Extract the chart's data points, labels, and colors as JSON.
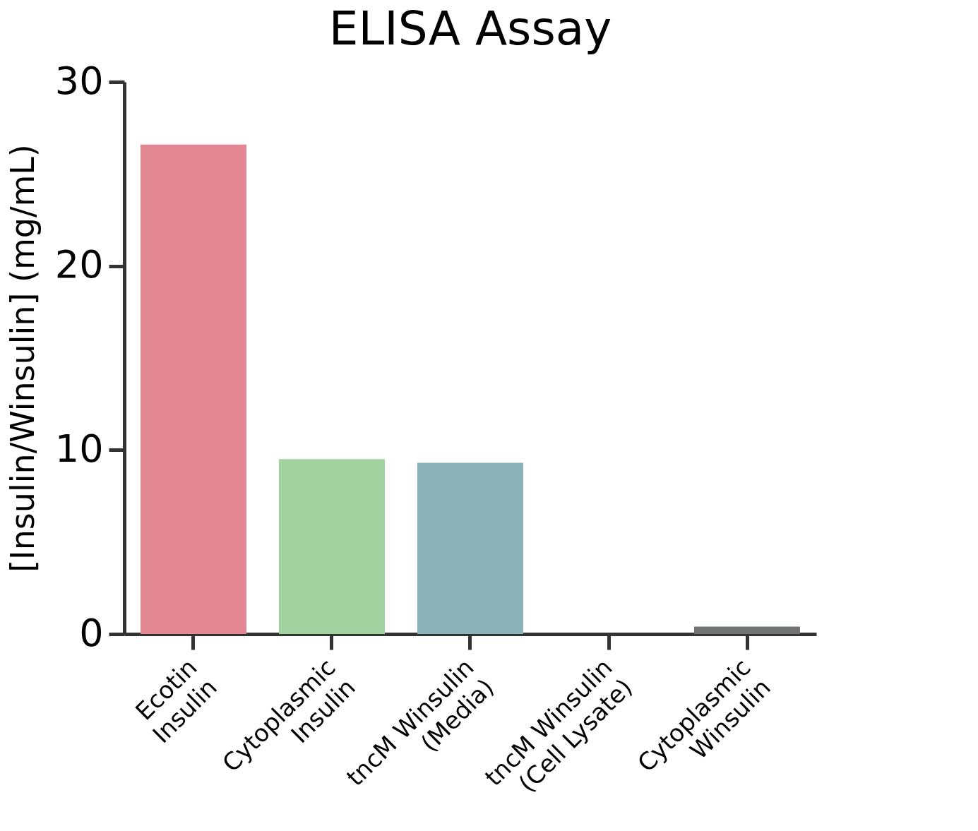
{
  "chart_data": {
    "type": "bar",
    "title": "ELISA Assay",
    "ylabel": "[Insulin/Winsulin] (mg/mL)",
    "categories": [
      "Ecotin\nInsulin",
      "Cytoplasmic\nInsulin",
      "tncM Winsulin\n(Media)",
      "tncM Winsulin\n(Cell Lysate)",
      "Cytoplasmic\nWinsulin"
    ],
    "values": [
      26.6,
      9.5,
      9.3,
      0,
      0.4
    ],
    "colors": [
      "#e38892",
      "#a1d19e",
      "#8cb2b9",
      null,
      "#717473"
    ],
    "ylim": [
      0,
      30
    ],
    "yticks": [
      0,
      10,
      20,
      30
    ],
    "grid": false
  }
}
